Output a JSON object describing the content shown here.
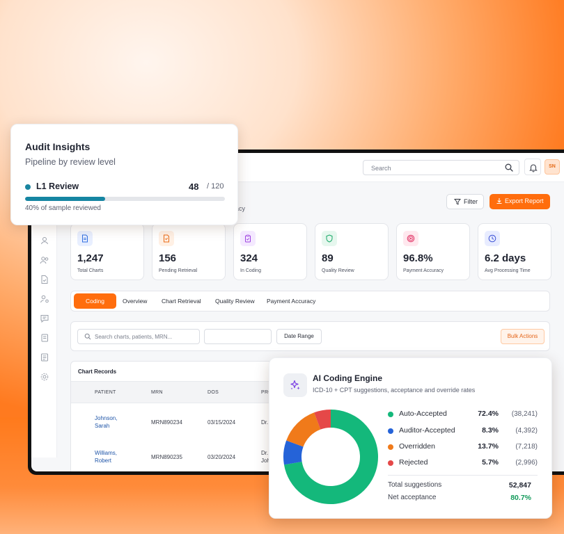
{
  "colors": {
    "accent": "#ff6d0d",
    "progress": "#1585a2",
    "auto": "#14b87b",
    "auditor": "#2563d8",
    "overridden": "#f07a1a",
    "rejected": "#e54848"
  },
  "topbar": {
    "search_placeholder": "Search",
    "avatar_initials": "SN"
  },
  "page": {
    "subtitle_fragment": "racy"
  },
  "actions": {
    "filter_label": "Filter",
    "export_label": "Export Report"
  },
  "stats": [
    {
      "value": "1,247",
      "label": "Total Charts",
      "icon": "document-icon"
    },
    {
      "value": "156",
      "label": "Pending Retrieval",
      "icon": "file-pending-icon"
    },
    {
      "value": "324",
      "label": "In Coding",
      "icon": "clipboard-check-icon"
    },
    {
      "value": "89",
      "label": "Quality Review",
      "icon": "shield-icon"
    },
    {
      "value": "96.8%",
      "label": "Payment Accuracy",
      "icon": "target-icon"
    },
    {
      "value": "6.2 days",
      "label": "Avg Processing Time",
      "icon": "clock-icon"
    }
  ],
  "tabs": {
    "active": "Coding",
    "items": [
      "Overview",
      "Chart Retrieval",
      "Quality Review",
      "Payment Accuracy"
    ]
  },
  "filters": {
    "search_placeholder": "Search charts, patients, MRN...",
    "date_range": "Date Range",
    "bulk_actions": "Bulk Actions"
  },
  "records": {
    "title": "Chart Records",
    "columns": [
      "PATIENT",
      "MRN",
      "DOS",
      "PRO"
    ],
    "rows": [
      {
        "patient": [
          "Johnson,",
          "Sarah"
        ],
        "mrn": "MRN890234",
        "dos": "03/15/2024",
        "provider": [
          "Dr."
        ]
      },
      {
        "patient": [
          "Williams,",
          "Robert"
        ],
        "mrn": "MRN890235",
        "dos": "03/20/2024",
        "provider": [
          "Dr.",
          "Joh"
        ]
      }
    ]
  },
  "audit": {
    "title": "Audit Insights",
    "subtitle": "Pipeline by review level",
    "level": "L1 Review",
    "count": "48",
    "total": "/ 120",
    "progress_fraction": 0.4,
    "caption": "40% of sample reviewed"
  },
  "ai_engine": {
    "title": "AI Coding Engine",
    "subtitle": "ICD-10 + CPT suggestions, acceptance and override rates",
    "totals": [
      {
        "label": "Total suggestions",
        "value": "52,847"
      },
      {
        "label": "Net acceptance",
        "value": "80.7%"
      }
    ]
  },
  "chart_data": {
    "type": "pie",
    "title": "",
    "categories": [
      "Auto-Accepted",
      "Auditor-Accepted",
      "Overridden",
      "Rejected"
    ],
    "values": [
      72.4,
      8.3,
      13.7,
      5.7
    ],
    "percent_labels": [
      "72.4%",
      "8.3%",
      "13.7%",
      "5.7%"
    ],
    "count_labels": [
      "(38,241)",
      "(4,392)",
      "(7,218)",
      "(2,996)"
    ],
    "colors": [
      "#14b87b",
      "#2563d8",
      "#f07a1a",
      "#e54848"
    ],
    "legend": "right"
  }
}
